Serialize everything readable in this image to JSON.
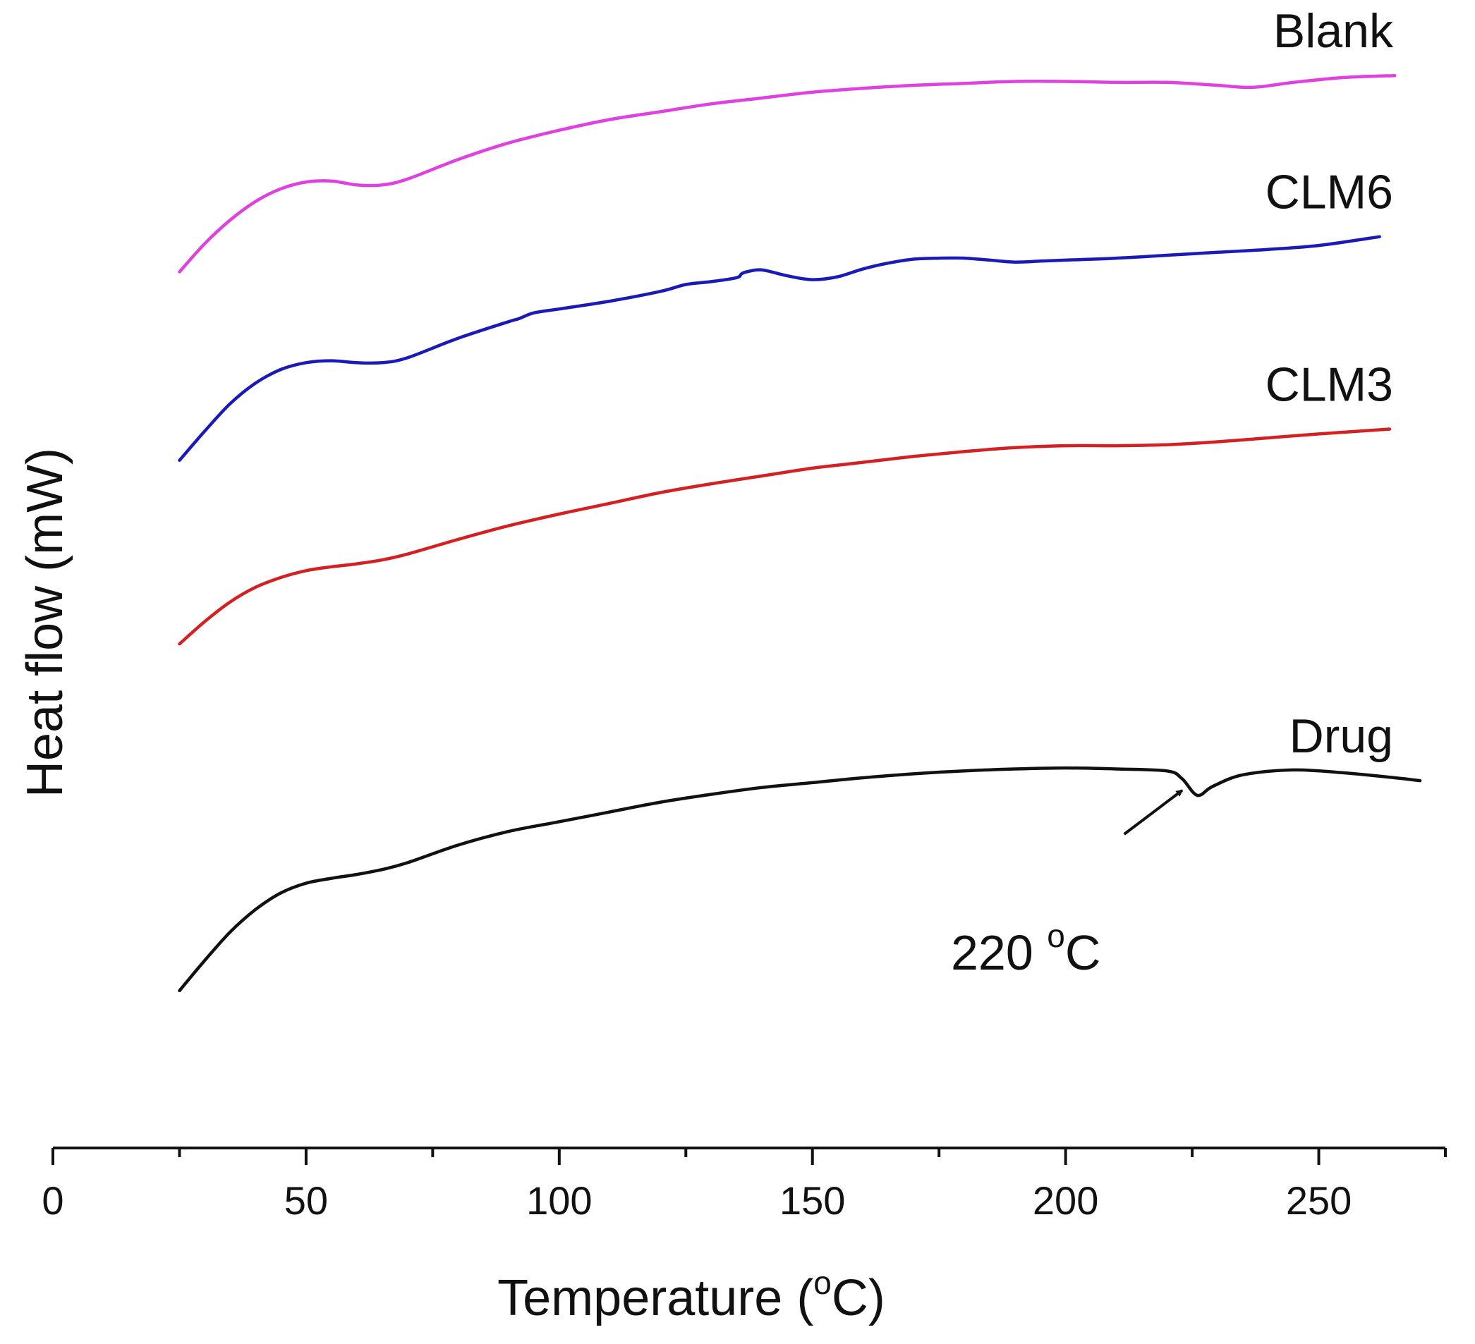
{
  "chart_data": {
    "type": "line",
    "title": "",
    "xlabel": "Temperature (°C)",
    "xlabel_parts": {
      "before": "Temperature (",
      "sup": "o",
      "after": "C)"
    },
    "ylabel": "Heat flow (mW)",
    "xlim": [
      0,
      275
    ],
    "ylim": [
      0,
      100
    ],
    "y_ticks_shown": false,
    "grid": false,
    "x_ticks_major": [
      0,
      50,
      100,
      150,
      200,
      250
    ],
    "x_ticks_minor": [
      25,
      75,
      125,
      175,
      225,
      275
    ],
    "x_tick_labels": [
      "0",
      "50",
      "100",
      "150",
      "200",
      "250"
    ],
    "series": [
      {
        "name": "Blank",
        "color": "#e040e0",
        "x": [
          25,
          30,
          35,
          40,
          45,
          50,
          55,
          60,
          65,
          70,
          80,
          90,
          100,
          110,
          120,
          130,
          140,
          150,
          160,
          170,
          180,
          190,
          200,
          210,
          220,
          230,
          237,
          245,
          255,
          265
        ],
        "y": [
          80.9,
          83.8,
          86.2,
          88.1,
          89.4,
          90.1,
          90.2,
          89.8,
          89.8,
          90.4,
          92.4,
          94.1,
          95.4,
          96.5,
          97.3,
          98.1,
          98.7,
          99.3,
          99.7,
          100.0,
          100.2,
          100.4,
          100.4,
          100.3,
          100.3,
          100.0,
          99.8,
          100.3,
          100.8,
          101.0
        ]
      },
      {
        "name": "CLM6",
        "color": "#1a1ab8",
        "x": [
          25,
          30,
          35,
          40,
          45,
          50,
          55,
          60,
          65,
          70,
          80,
          90,
          92,
          95,
          100,
          110,
          120,
          125,
          130,
          135,
          136,
          137,
          140,
          145,
          150,
          155,
          160,
          165,
          170,
          175,
          180,
          185,
          190,
          195,
          200,
          210,
          220,
          230,
          240,
          250,
          262
        ],
        "y": [
          61.6,
          64.6,
          67.4,
          69.5,
          70.9,
          71.6,
          71.8,
          71.6,
          71.6,
          72.1,
          74.1,
          75.8,
          76.1,
          76.7,
          77.1,
          77.9,
          78.9,
          79.6,
          79.9,
          80.3,
          80.7,
          80.9,
          81.1,
          80.5,
          80.1,
          80.4,
          81.2,
          81.8,
          82.2,
          82.3,
          82.3,
          82.1,
          81.9,
          82.0,
          82.1,
          82.3,
          82.6,
          82.9,
          83.2,
          83.6,
          84.5
        ]
      },
      {
        "name": "CLM3",
        "color": "#d42020",
        "x": [
          25,
          30,
          35,
          40,
          45,
          50,
          55,
          60,
          65,
          70,
          80,
          90,
          100,
          110,
          120,
          130,
          140,
          150,
          160,
          170,
          180,
          190,
          200,
          210,
          220,
          230,
          240,
          250,
          264
        ],
        "y": [
          42.8,
          45.1,
          47.1,
          48.6,
          49.6,
          50.3,
          50.7,
          51.0,
          51.4,
          52.0,
          53.5,
          54.9,
          56.1,
          57.2,
          58.3,
          59.2,
          60.0,
          60.8,
          61.4,
          62.0,
          62.5,
          62.9,
          63.1,
          63.1,
          63.2,
          63.5,
          63.9,
          64.3,
          64.8
        ]
      },
      {
        "name": "Drug",
        "color": "#111111",
        "x": [
          25,
          30,
          35,
          40,
          45,
          50,
          55,
          60,
          65,
          70,
          80,
          90,
          100,
          110,
          120,
          130,
          140,
          150,
          160,
          170,
          180,
          190,
          200,
          210,
          220,
          223,
          226,
          229,
          235,
          245,
          255,
          265,
          270
        ],
        "y": [
          7.3,
          10.4,
          13.3,
          15.6,
          17.3,
          18.3,
          18.8,
          19.2,
          19.7,
          20.4,
          22.2,
          23.6,
          24.6,
          25.6,
          26.6,
          27.4,
          28.1,
          28.6,
          29.1,
          29.5,
          29.8,
          30.0,
          30.1,
          30.0,
          29.8,
          29.0,
          27.3,
          28.2,
          29.4,
          29.9,
          29.6,
          29.1,
          28.8
        ]
      }
    ],
    "annotations": [
      {
        "text": "220 °C",
        "number": "220 ",
        "sup": "o",
        "unit": "C",
        "arrow_to_x": 223,
        "arrow_to_y": 27.8
      }
    ]
  }
}
